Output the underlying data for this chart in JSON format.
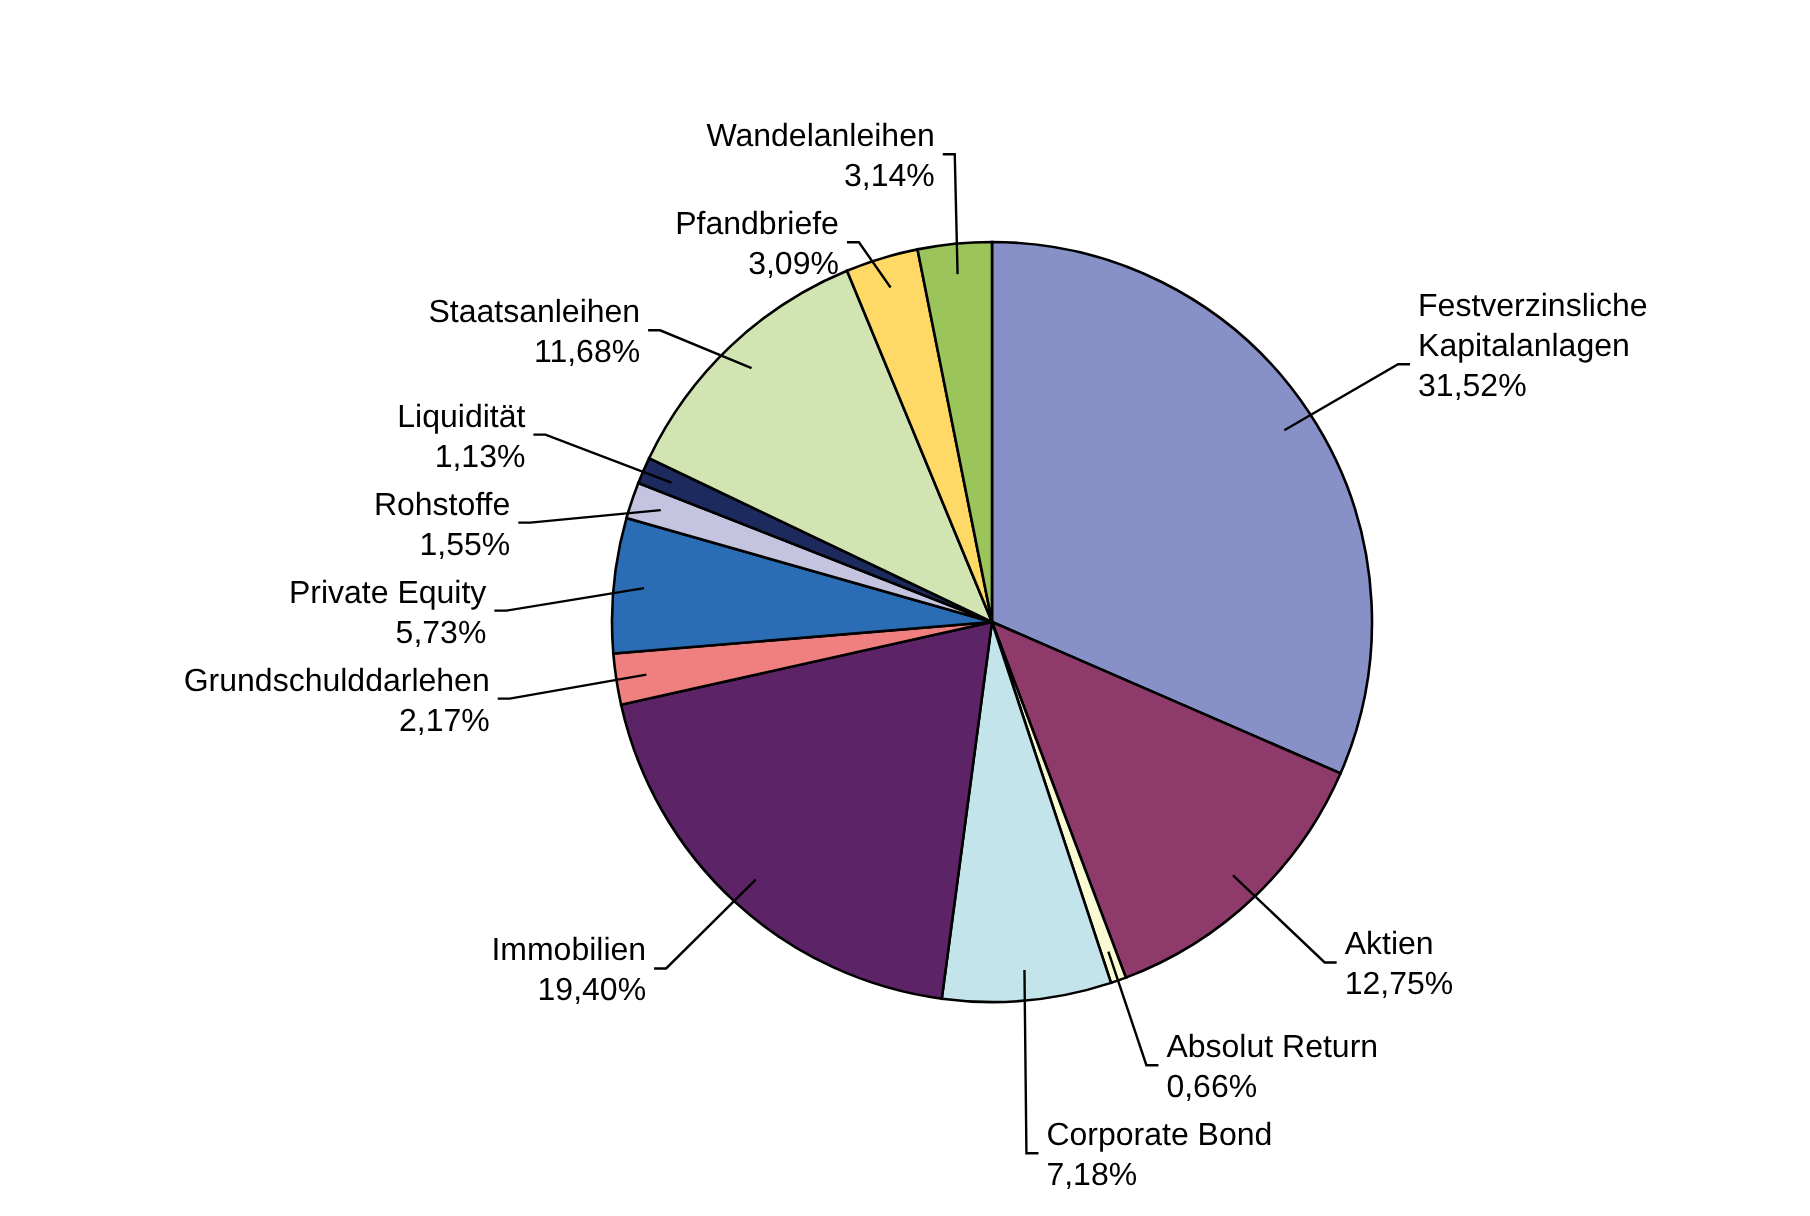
{
  "chart_data": {
    "type": "pie",
    "categories": [
      "Festverzinsliche Kapitalanlagen",
      "Aktien",
      "Absolut Return",
      "Corporate Bond",
      "Immobilien",
      "Grundschulddarlehen",
      "Private Equity",
      "Rohstoffe",
      "Liquidität",
      "Staatsanleihen",
      "Pfandbriefe",
      "Wandelanleihen"
    ],
    "values": [
      31.52,
      12.75,
      0.66,
      7.18,
      19.4,
      2.17,
      5.73,
      1.55,
      1.13,
      11.68,
      3.09,
      3.14
    ],
    "value_labels": [
      "31,52%",
      "12,75%",
      "0,66%",
      "7,18%",
      "19,40%",
      "2,17%",
      "5,73%",
      "1,55%",
      "1,13%",
      "11,68%",
      "3,09%",
      "3,14%"
    ],
    "colors": [
      "#8890c8",
      "#8e3a6b",
      "#fafad2",
      "#c4e4ec",
      "#5c2366",
      "#f08080",
      "#2a6db5",
      "#c4c4e0",
      "#1d2a5e",
      "#d3e4b3",
      "#ffd966",
      "#9bc45a"
    ]
  }
}
